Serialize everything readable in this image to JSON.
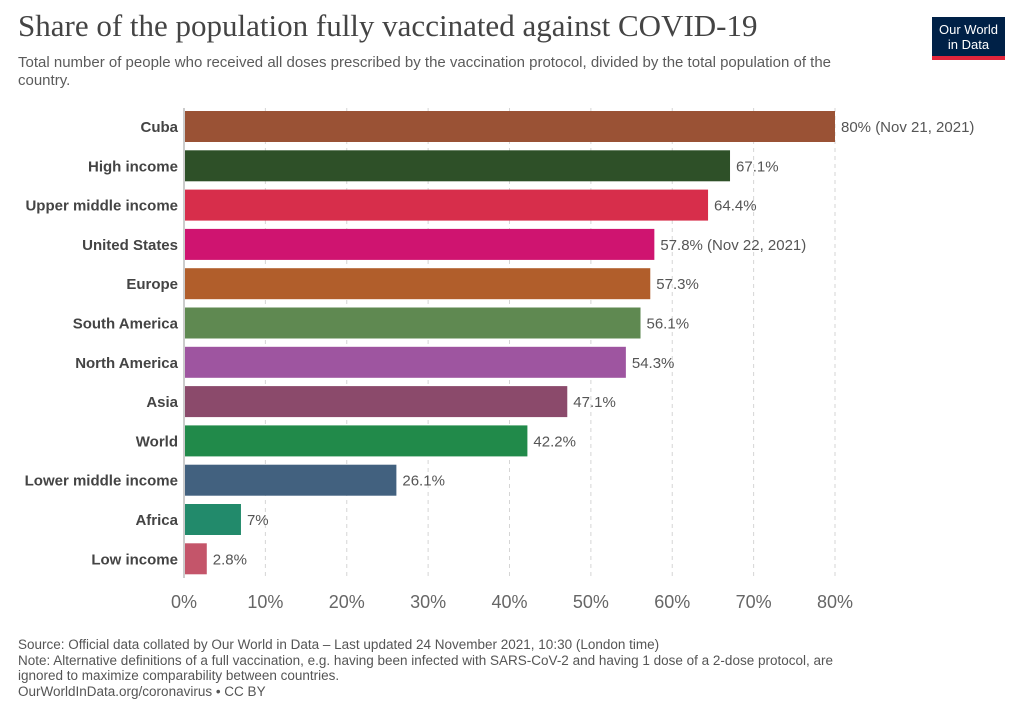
{
  "header": {
    "title": "Share of the population fully vaccinated against COVID-19",
    "subtitle": "Total number of people who received all doses prescribed by the vaccination protocol, divided by the total population of the country.",
    "logo_line1": "Our World",
    "logo_line2": "in Data"
  },
  "chart_data": {
    "type": "bar",
    "orientation": "horizontal",
    "categories": [
      "Cuba",
      "High income",
      "Upper middle income",
      "United States",
      "Europe",
      "South America",
      "North America",
      "Asia",
      "World",
      "Lower middle income",
      "Africa",
      "Low income"
    ],
    "values": [
      80,
      67.1,
      64.4,
      57.8,
      57.3,
      56.1,
      54.3,
      47.1,
      42.2,
      26.1,
      7,
      2.8
    ],
    "value_labels": [
      "80% (Nov 21, 2021)",
      "67.1%",
      "64.4%",
      "57.8% (Nov 22, 2021)",
      "57.3%",
      "56.1%",
      "54.3%",
      "47.1%",
      "42.2%",
      "26.1%",
      "7%",
      "2.8%"
    ],
    "colors": [
      "#9a5235",
      "#2e5028",
      "#d72e4b",
      "#cf1470",
      "#b15e2b",
      "#5f8951",
      "#9e55a0",
      "#8b4a6b",
      "#218a4a",
      "#42617f",
      "#228a6b",
      "#c4556a"
    ],
    "xlim": [
      0,
      80
    ],
    "xticks": [
      0,
      10,
      20,
      30,
      40,
      50,
      60,
      70,
      80
    ],
    "xtick_labels": [
      "0%",
      "10%",
      "20%",
      "30%",
      "40%",
      "50%",
      "60%",
      "70%",
      "80%"
    ],
    "grid": true
  },
  "footer": {
    "source": "Source: Official data collated by Our World in Data – Last updated 24 November 2021, 10:30 (London time)",
    "note_line1": "Note: Alternative definitions of a full vaccination, e.g. having been infected with SARS-CoV-2 and having 1 dose of a 2-dose protocol, are",
    "note_line2": "ignored to maximize comparability between countries.",
    "license": "OurWorldInData.org/coronavirus • CC BY"
  }
}
